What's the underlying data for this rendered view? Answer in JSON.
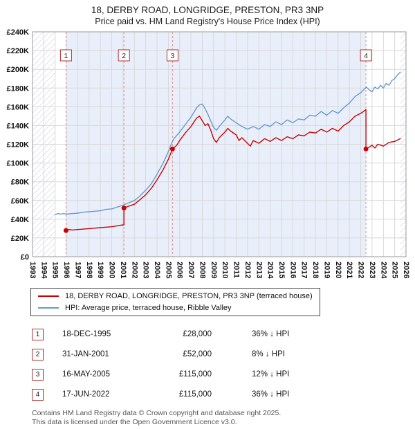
{
  "header": {
    "title": "18, DERBY ROAD, LONGRIDGE, PRESTON, PR3 3NP",
    "subtitle": "Price paid vs. HM Land Registry's House Price Index (HPI)"
  },
  "legend": {
    "items": [
      {
        "label": "18, DERBY ROAD, LONGRIDGE, PRESTON, PR3 3NP (terraced house)",
        "color": "#cc0000"
      },
      {
        "label": "HPI: Average price, terraced house, Ribble Valley",
        "color": "#6699cc"
      }
    ]
  },
  "transactions": [
    {
      "num": "1",
      "date": "18-DEC-1995",
      "price": "£28,000",
      "hpi": "36% ↓ HPI"
    },
    {
      "num": "2",
      "date": "31-JAN-2001",
      "price": "£52,000",
      "hpi": "8% ↓ HPI"
    },
    {
      "num": "3",
      "date": "16-MAY-2005",
      "price": "£115,000",
      "hpi": "12% ↓ HPI"
    },
    {
      "num": "4",
      "date": "17-JUN-2022",
      "price": "£115,000",
      "hpi": "36% ↓ HPI"
    }
  ],
  "footer": {
    "line1": "Contains HM Land Registry data © Crown copyright and database right 2025.",
    "line2": "This data is licensed under the Open Government Licence v3.0."
  },
  "chart_data": {
    "type": "line",
    "title": "Price paid vs. HM Land Registry's House Price Index (HPI)",
    "x_range": [
      1993,
      2026
    ],
    "y_range": [
      0,
      240000
    ],
    "x_ticks": [
      1993,
      1994,
      1995,
      1996,
      1997,
      1998,
      1999,
      2000,
      2001,
      2002,
      2003,
      2004,
      2005,
      2006,
      2007,
      2008,
      2009,
      2010,
      2011,
      2012,
      2013,
      2014,
      2015,
      2016,
      2017,
      2018,
      2019,
      2020,
      2021,
      2022,
      2023,
      2024,
      2025,
      2026
    ],
    "y_ticks": [
      0,
      20000,
      40000,
      60000,
      80000,
      100000,
      120000,
      140000,
      160000,
      180000,
      200000,
      220000,
      240000
    ],
    "y_tick_labels": [
      "£0",
      "£20K",
      "£40K",
      "£60K",
      "£80K",
      "£100K",
      "£120K",
      "£140K",
      "£160K",
      "£180K",
      "£200K",
      "£220K",
      "£240K"
    ],
    "grid": true,
    "legend_position": "bottom",
    "colors": {
      "property": "#cc0000",
      "hpi": "#6699cc",
      "band": "#e9effa",
      "sale_line": "#e08a8a",
      "sale_box_border": "#b03030",
      "grid": "#d8d8d8",
      "hatch": "#dfe3ec"
    },
    "band_x": [
      1995.96,
      2022.46
    ],
    "no_data_x": [
      [
        1993,
        1995.0
      ],
      [
        2025.5,
        2026
      ]
    ],
    "sales": [
      {
        "label": "1",
        "x": 1995.96,
        "price": 28000
      },
      {
        "label": "2",
        "x": 2001.08,
        "price": 52000
      },
      {
        "label": "3",
        "x": 2005.37,
        "price": 115000
      },
      {
        "label": "4",
        "x": 2022.46,
        "price": 115000
      }
    ],
    "series": [
      {
        "name": "18, DERBY ROAD, LONGRIDGE, PRESTON, PR3 3NP (terraced house)",
        "color": "#cc0000",
        "points": [
          [
            1995.96,
            28000
          ],
          [
            1996.25,
            29000
          ],
          [
            1996.5,
            28500
          ],
          [
            1997,
            29000
          ],
          [
            1997.5,
            29500
          ],
          [
            1998,
            30000
          ],
          [
            1998.5,
            30500
          ],
          [
            1999,
            31000
          ],
          [
            1999.5,
            31500
          ],
          [
            2000,
            32000
          ],
          [
            2000.5,
            33000
          ],
          [
            2001,
            34000
          ],
          [
            2001.08,
            34000
          ],
          [
            2001.08,
            52000
          ],
          [
            2001.5,
            54000
          ],
          [
            2002,
            56000
          ],
          [
            2002.5,
            61000
          ],
          [
            2003,
            66000
          ],
          [
            2003.5,
            73000
          ],
          [
            2004,
            82000
          ],
          [
            2004.5,
            92000
          ],
          [
            2005,
            104000
          ],
          [
            2005.37,
            115000
          ],
          [
            2005.75,
            119000
          ],
          [
            2006,
            124000
          ],
          [
            2006.5,
            132000
          ],
          [
            2007,
            139000
          ],
          [
            2007.5,
            148000
          ],
          [
            2007.75,
            150000
          ],
          [
            2008,
            145000
          ],
          [
            2008.25,
            140000
          ],
          [
            2008.5,
            142000
          ],
          [
            2008.75,
            135000
          ],
          [
            2009,
            126000
          ],
          [
            2009.25,
            122000
          ],
          [
            2009.5,
            127000
          ],
          [
            2010,
            133000
          ],
          [
            2010.25,
            137000
          ],
          [
            2010.5,
            134000
          ],
          [
            2011,
            130000
          ],
          [
            2011.25,
            124000
          ],
          [
            2011.5,
            127000
          ],
          [
            2012,
            121000
          ],
          [
            2012.25,
            118000
          ],
          [
            2012.5,
            124000
          ],
          [
            2013,
            121000
          ],
          [
            2013.5,
            126000
          ],
          [
            2014,
            123000
          ],
          [
            2014.5,
            127000
          ],
          [
            2015,
            124000
          ],
          [
            2015.5,
            128000
          ],
          [
            2016,
            126000
          ],
          [
            2016.5,
            130000
          ],
          [
            2017,
            129000
          ],
          [
            2017.5,
            133000
          ],
          [
            2018,
            132000
          ],
          [
            2018.5,
            136000
          ],
          [
            2019,
            133000
          ],
          [
            2019.5,
            137000
          ],
          [
            2020,
            134000
          ],
          [
            2020.5,
            140000
          ],
          [
            2021,
            144000
          ],
          [
            2021.5,
            150000
          ],
          [
            2022,
            153000
          ],
          [
            2022.25,
            155000
          ],
          [
            2022.46,
            157000
          ],
          [
            2022.46,
            115000
          ],
          [
            2022.75,
            117000
          ],
          [
            2023,
            119000
          ],
          [
            2023.25,
            116000
          ],
          [
            2023.5,
            120000
          ],
          [
            2024,
            118000
          ],
          [
            2024.5,
            122000
          ],
          [
            2025,
            123000
          ],
          [
            2025.5,
            126000
          ]
        ]
      },
      {
        "name": "HPI: Average price, terraced house, Ribble Valley",
        "color": "#6699cc",
        "points": [
          [
            1995,
            45000
          ],
          [
            1995.25,
            46000
          ],
          [
            1995.5,
            45500
          ],
          [
            1995.75,
            46000
          ],
          [
            1996,
            45500
          ],
          [
            1996.5,
            46000
          ],
          [
            1997,
            46500
          ],
          [
            1997.5,
            47500
          ],
          [
            1998,
            48000
          ],
          [
            1998.5,
            48500
          ],
          [
            1999,
            49000
          ],
          [
            1999.5,
            50500
          ],
          [
            2000,
            51000
          ],
          [
            2000.5,
            53000
          ],
          [
            2001,
            55000
          ],
          [
            2001.5,
            57500
          ],
          [
            2002,
            60000
          ],
          [
            2002.5,
            65000
          ],
          [
            2003,
            71000
          ],
          [
            2003.5,
            78000
          ],
          [
            2004,
            88000
          ],
          [
            2004.5,
            99000
          ],
          [
            2005,
            112000
          ],
          [
            2005.25,
            120000
          ],
          [
            2005.5,
            126000
          ],
          [
            2006,
            133000
          ],
          [
            2006.5,
            141000
          ],
          [
            2007,
            149000
          ],
          [
            2007.5,
            159000
          ],
          [
            2007.75,
            162000
          ],
          [
            2008,
            163000
          ],
          [
            2008.25,
            158000
          ],
          [
            2008.5,
            152000
          ],
          [
            2009,
            138000
          ],
          [
            2009.25,
            135000
          ],
          [
            2009.5,
            139000
          ],
          [
            2010,
            146000
          ],
          [
            2010.25,
            150000
          ],
          [
            2010.5,
            147000
          ],
          [
            2011,
            143000
          ],
          [
            2011.5,
            139000
          ],
          [
            2012,
            136000
          ],
          [
            2012.5,
            139000
          ],
          [
            2013,
            136000
          ],
          [
            2013.5,
            141000
          ],
          [
            2014,
            139000
          ],
          [
            2014.5,
            144000
          ],
          [
            2015,
            141000
          ],
          [
            2015.5,
            146000
          ],
          [
            2016,
            143000
          ],
          [
            2016.5,
            147000
          ],
          [
            2017,
            146000
          ],
          [
            2017.5,
            151000
          ],
          [
            2018,
            150000
          ],
          [
            2018.5,
            155000
          ],
          [
            2019,
            151000
          ],
          [
            2019.5,
            156000
          ],
          [
            2020,
            153000
          ],
          [
            2020.5,
            159000
          ],
          [
            2021,
            164000
          ],
          [
            2021.5,
            171000
          ],
          [
            2022,
            175000
          ],
          [
            2022.5,
            181000
          ],
          [
            2022.75,
            178000
          ],
          [
            2023,
            176000
          ],
          [
            2023.25,
            181000
          ],
          [
            2023.5,
            179000
          ],
          [
            2023.75,
            183000
          ],
          [
            2024,
            180000
          ],
          [
            2024.25,
            185000
          ],
          [
            2024.5,
            183000
          ],
          [
            2024.75,
            188000
          ],
          [
            2025,
            190000
          ],
          [
            2025.25,
            194000
          ],
          [
            2025.5,
            197000
          ]
        ]
      }
    ]
  }
}
